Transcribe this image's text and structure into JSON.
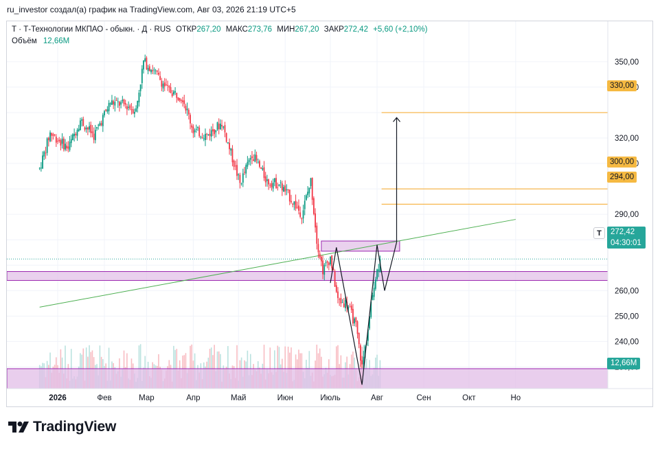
{
  "caption": "ru_investor создал(а) график на TradingView.com, Авг 03, 2026 21:19 UTC+5",
  "legend": {
    "symbol_line": "Т · Т-Технологии МКПАО - обыкн. · Д · RUS",
    "open_label": "ОТКР",
    "open_value": "267,20",
    "high_label": "МАКС",
    "high_value": "273,76",
    "low_label": "МИН",
    "low_value": "267,20",
    "close_label": "ЗАКР",
    "close_value": "272,42",
    "change_value": "+5,60 (+2,10%)",
    "volume_label": "Объём",
    "volume_value": "12,66M"
  },
  "price_tags": {
    "level_330": "330,00",
    "level_300": "300,00",
    "level_294": "294,00",
    "current_price": "272,42",
    "countdown": "04:30:01",
    "symbol_badge": "Т",
    "volume_tag": "12,66M"
  },
  "colors": {
    "up": "#089981",
    "down": "#f23645",
    "level_line": "#f5a623",
    "zone_fill": "#e1bee7",
    "zone_border": "#9c27b0",
    "trendline": "#4caf50"
  },
  "footer": {
    "logo_text": "TradingView",
    "logo_icon": "tradingview-logo-icon"
  },
  "chart_data": {
    "type": "candlestick",
    "x_tick_labels": [
      "2026",
      "Фев",
      "Мар",
      "Апр",
      "Май",
      "Июн",
      "Июль",
      "Авг",
      "Сен",
      "Окт",
      "Но"
    ],
    "y_tick_labels": [
      "350,00",
      "340,00",
      "320,00",
      "310,00",
      "290,00",
      "280,00",
      "260,00",
      "250,00",
      "240,00",
      "230,00"
    ],
    "y_range": [
      215,
      352
    ],
    "anchors_approx": [
      {
        "date": "2025-12-20",
        "close": 308
      },
      {
        "date": "2025-12-27",
        "close": 322
      },
      {
        "date": "2026-01-08",
        "close": 316
      },
      {
        "date": "2026-01-16",
        "close": 327
      },
      {
        "date": "2026-01-25",
        "close": 321
      },
      {
        "date": "2026-02-05",
        "close": 334
      },
      {
        "date": "2026-02-15",
        "close": 333
      },
      {
        "date": "2026-02-22",
        "close": 331
      },
      {
        "date": "2026-02-27",
        "close": 350
      },
      {
        "date": "2026-03-05",
        "close": 347
      },
      {
        "date": "2026-03-15",
        "close": 339
      },
      {
        "date": "2026-03-25",
        "close": 336
      },
      {
        "date": "2026-04-01",
        "close": 323
      },
      {
        "date": "2026-04-10",
        "close": 321
      },
      {
        "date": "2026-04-20",
        "close": 326
      },
      {
        "date": "2026-04-25",
        "close": 316
      },
      {
        "date": "2026-05-02",
        "close": 302
      },
      {
        "date": "2026-05-10",
        "close": 314
      },
      {
        "date": "2026-05-20",
        "close": 303
      },
      {
        "date": "2026-05-28",
        "close": 302
      },
      {
        "date": "2026-06-05",
        "close": 296
      },
      {
        "date": "2026-06-12",
        "close": 290
      },
      {
        "date": "2026-06-18",
        "close": 303
      },
      {
        "date": "2026-06-22",
        "close": 280
      },
      {
        "date": "2026-06-26",
        "close": 268
      },
      {
        "date": "2026-07-01",
        "close": 273
      },
      {
        "date": "2026-07-06",
        "close": 256
      },
      {
        "date": "2026-07-12",
        "close": 255
      },
      {
        "date": "2026-07-18",
        "close": 246
      },
      {
        "date": "2026-07-22",
        "close": 230
      },
      {
        "date": "2026-07-26",
        "close": 245
      },
      {
        "date": "2026-07-30",
        "close": 263
      },
      {
        "date": "2026-08-03",
        "close": 272.42
      }
    ],
    "last_candle": {
      "open": 267.2,
      "high": 273.76,
      "low": 267.2,
      "close": 272.42,
      "change": 5.6,
      "change_pct": 2.1
    },
    "horizontal_levels": [
      330,
      300,
      294
    ],
    "zones": [
      {
        "name": "support-zone",
        "from": 264,
        "to": 267.5
      },
      {
        "name": "breakout-zone",
        "from": 275.5,
        "to": 279.5
      },
      {
        "name": "volume-zone",
        "from": 0,
        "to": 0
      }
    ],
    "trendline": [
      {
        "date": "2025-12-20",
        "price": 253.5
      },
      {
        "date": "2026-11-01",
        "price": 288
      }
    ],
    "projection_path": [
      {
        "date": "2026-07-01",
        "price": 263
      },
      {
        "date": "2026-07-05",
        "price": 277
      },
      {
        "date": "2026-07-22",
        "price": 223
      },
      {
        "date": "2026-08-01",
        "price": 278
      },
      {
        "date": "2026-08-06",
        "price": 260
      },
      {
        "date": "2026-08-14",
        "price": 279
      },
      {
        "date": "2026-08-14",
        "price": 328
      }
    ],
    "volume_last": "12,66M",
    "grid": true
  }
}
